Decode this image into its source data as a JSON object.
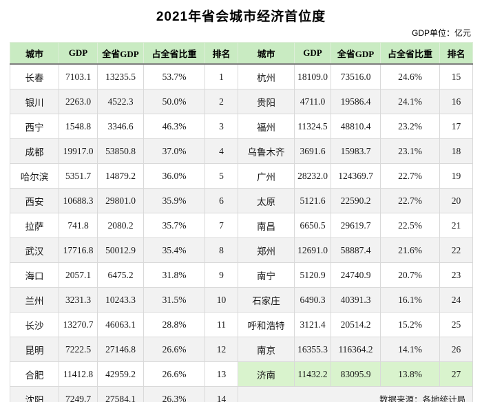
{
  "title": "2021年省会城市经济首位度",
  "unit_note": "GDP单位：亿元",
  "source_note": "数据来源：各地统计局",
  "highlight_city": "济南",
  "colors": {
    "header_green": "#c9ebc2",
    "highlight_green": "#d9f3cd",
    "stripe_gray": "#f2f2f2",
    "grid_line": "#d9d9d9",
    "header_underline": "#7d7d7d"
  },
  "chart_data": {
    "type": "table",
    "title": "2021年省会城市经济首位度",
    "unit": "亿元",
    "columns": [
      "城市",
      "GDP",
      "全省GDP",
      "占全省比重",
      "排名"
    ],
    "left_rows": [
      [
        "长春",
        "7103.1",
        "13235.5",
        "53.7%",
        "1"
      ],
      [
        "银川",
        "2263.0",
        "4522.3",
        "50.0%",
        "2"
      ],
      [
        "西宁",
        "1548.8",
        "3346.6",
        "46.3%",
        "3"
      ],
      [
        "成都",
        "19917.0",
        "53850.8",
        "37.0%",
        "4"
      ],
      [
        "哈尔滨",
        "5351.7",
        "14879.2",
        "36.0%",
        "5"
      ],
      [
        "西安",
        "10688.3",
        "29801.0",
        "35.9%",
        "6"
      ],
      [
        "拉萨",
        "741.8",
        "2080.2",
        "35.7%",
        "7"
      ],
      [
        "武汉",
        "17716.8",
        "50012.9",
        "35.4%",
        "8"
      ],
      [
        "海口",
        "2057.1",
        "6475.2",
        "31.8%",
        "9"
      ],
      [
        "兰州",
        "3231.3",
        "10243.3",
        "31.5%",
        "10"
      ],
      [
        "长沙",
        "13270.7",
        "46063.1",
        "28.8%",
        "11"
      ],
      [
        "昆明",
        "7222.5",
        "27146.8",
        "26.6%",
        "12"
      ],
      [
        "合肥",
        "11412.8",
        "42959.2",
        "26.6%",
        "13"
      ],
      [
        "沈阳",
        "7249.7",
        "27584.1",
        "26.3%",
        "14"
      ]
    ],
    "right_rows": [
      [
        "杭州",
        "18109.0",
        "73516.0",
        "24.6%",
        "15"
      ],
      [
        "贵阳",
        "4711.0",
        "19586.4",
        "24.1%",
        "16"
      ],
      [
        "福州",
        "11324.5",
        "48810.4",
        "23.2%",
        "17"
      ],
      [
        "乌鲁木齐",
        "3691.6",
        "15983.7",
        "23.1%",
        "18"
      ],
      [
        "广州",
        "28232.0",
        "124369.7",
        "22.7%",
        "19"
      ],
      [
        "太原",
        "5121.6",
        "22590.2",
        "22.7%",
        "20"
      ],
      [
        "南昌",
        "6650.5",
        "29619.7",
        "22.5%",
        "21"
      ],
      [
        "郑州",
        "12691.0",
        "58887.4",
        "21.6%",
        "22"
      ],
      [
        "南宁",
        "5120.9",
        "24740.9",
        "20.7%",
        "23"
      ],
      [
        "石家庄",
        "6490.3",
        "40391.3",
        "16.1%",
        "24"
      ],
      [
        "呼和浩特",
        "3121.4",
        "20514.2",
        "15.2%",
        "25"
      ],
      [
        "南京",
        "16355.3",
        "116364.2",
        "14.1%",
        "26"
      ],
      [
        "济南",
        "11432.2",
        "83095.9",
        "13.8%",
        "27"
      ]
    ]
  }
}
